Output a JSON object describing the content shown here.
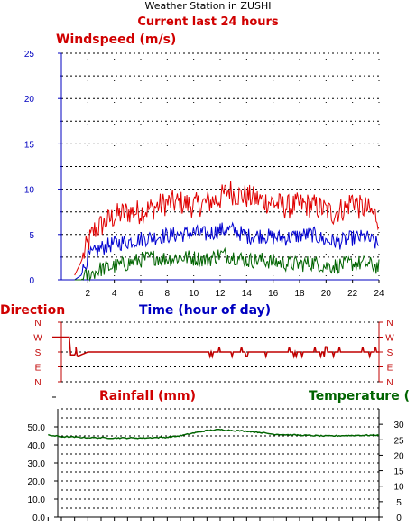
{
  "station": "Weather Station in ZUSHI",
  "subtitle": "Current last 24 hours",
  "colors": {
    "wind_max": "#e00000",
    "wind_avg": "#0000d0",
    "wind_min": "#006400",
    "direction": "#c00000",
    "temperature": "#006400",
    "axis_blue": "#0000c0",
    "axis_red": "#c00000"
  },
  "chart_data": [
    {
      "type": "line",
      "title": "Windspeed (m/s)",
      "xlabel": "Time (hour of day)",
      "x_ticks": [
        "2",
        "4",
        "6",
        "8",
        "10",
        "12",
        "14",
        "16",
        "18",
        "20",
        "22",
        "24"
      ],
      "y_ticks": [
        "0",
        "5",
        "10",
        "15",
        "20",
        "25"
      ],
      "ylim": [
        0,
        25
      ],
      "xlim": [
        0,
        24
      ],
      "grid": true,
      "series": [
        {
          "hours": [
            1.0,
            1.5,
            2.0,
            2.5,
            3.0,
            4.0,
            5.0,
            6.0,
            7.0,
            8.0,
            9.0,
            10.0,
            11.0,
            12.0,
            12.7,
            13.0,
            14.0,
            15.0,
            16.0,
            17.0,
            18.0,
            19.0,
            20.0,
            20.5,
            21.0,
            21.5,
            22.0,
            22.5,
            23.0,
            24.0
          ],
          "values": [
            0.5,
            2,
            4,
            5.5,
            6,
            7,
            7.5,
            7.5,
            8,
            8.5,
            8.5,
            8.2,
            8.5,
            9,
            10,
            9.5,
            9.2,
            8.8,
            8.5,
            8,
            8.3,
            8.2,
            7.7,
            7.3,
            7.7,
            7.9,
            9,
            8,
            7.9,
            6.8
          ]
        },
        {
          "hours": [
            1.0,
            1.5,
            2.0,
            2.5,
            3.0,
            4.0,
            5.0,
            6.0,
            7.0,
            8.0,
            9.0,
            10.0,
            11.0,
            12.0,
            13.0,
            14.0,
            15.0,
            16.0,
            17.0,
            18.0,
            19.0,
            20.0,
            21.0,
            22.0,
            23.0,
            24.0
          ],
          "values": [
            0,
            0.5,
            2.5,
            3,
            3.5,
            4,
            4.2,
            4.5,
            4.7,
            4.9,
            5,
            5.2,
            5,
            5.5,
            5.5,
            4.8,
            4.9,
            4.7,
            4.6,
            4.9,
            5,
            4.3,
            4.2,
            4.6,
            4.7,
            3.8
          ]
        },
        {
          "hours": [
            1.0,
            1.5,
            2.0,
            3.0,
            4.0,
            5.0,
            6.0,
            7.0,
            8.0,
            9.0,
            10.0,
            11.0,
            12.0,
            13.0,
            14.0,
            15.0,
            16.0,
            17.0,
            18.0,
            19.0,
            20.0,
            21.0,
            22.0,
            23.0,
            24.0
          ],
          "values": [
            0,
            0,
            0.5,
            1.2,
            1.5,
            1.8,
            2.2,
            2.5,
            2.3,
            2.5,
            2.4,
            2.2,
            2.8,
            2.6,
            2.1,
            2.2,
            2.0,
            1.8,
            1.7,
            1.9,
            1.5,
            1.6,
            1.8,
            1.8,
            1.4
          ]
        }
      ]
    },
    {
      "type": "line",
      "title": "Direction",
      "y_ticks": [
        "N",
        "W",
        "S",
        "E",
        "N"
      ],
      "ylim": [
        0,
        4
      ],
      "series": [
        {
          "hours": [
            -1.0,
            0.0,
            0.5,
            1.0,
            1.2,
            2.0,
            24.0
          ],
          "values": [
            3,
            3,
            3,
            3,
            1.7,
            2,
            2
          ]
        }
      ]
    },
    {
      "type": "line",
      "title": "Rainfall (mm)",
      "y_ticks": [
        "0.0",
        "10.0",
        "20.0",
        "30.0",
        "40.0",
        "50.0"
      ],
      "ylim": [
        0,
        60
      ],
      "grid": true,
      "series": [
        {
          "values": []
        }
      ]
    },
    {
      "type": "line",
      "title": "Temperature",
      "title_suffix": "(",
      "y_ticks": [
        "0",
        "5",
        "10",
        "15",
        "20",
        "25",
        "30"
      ],
      "ylim": [
        0,
        35
      ],
      "series": [
        {
          "hours": [
            -1.0,
            0.0,
            2.0,
            4.0,
            6.0,
            8.0,
            9.0,
            10.0,
            11.0,
            12.0,
            13.0,
            14.0,
            15.0,
            16.0,
            18.0,
            20.0,
            22.0,
            24.0
          ],
          "values": [
            26.5,
            26,
            25.7,
            25.6,
            25.6,
            25.8,
            26.3,
            27.2,
            28,
            28.3,
            28,
            27.8,
            27.4,
            26.8,
            26.5,
            26.2,
            26.4,
            26.5
          ]
        }
      ]
    }
  ]
}
